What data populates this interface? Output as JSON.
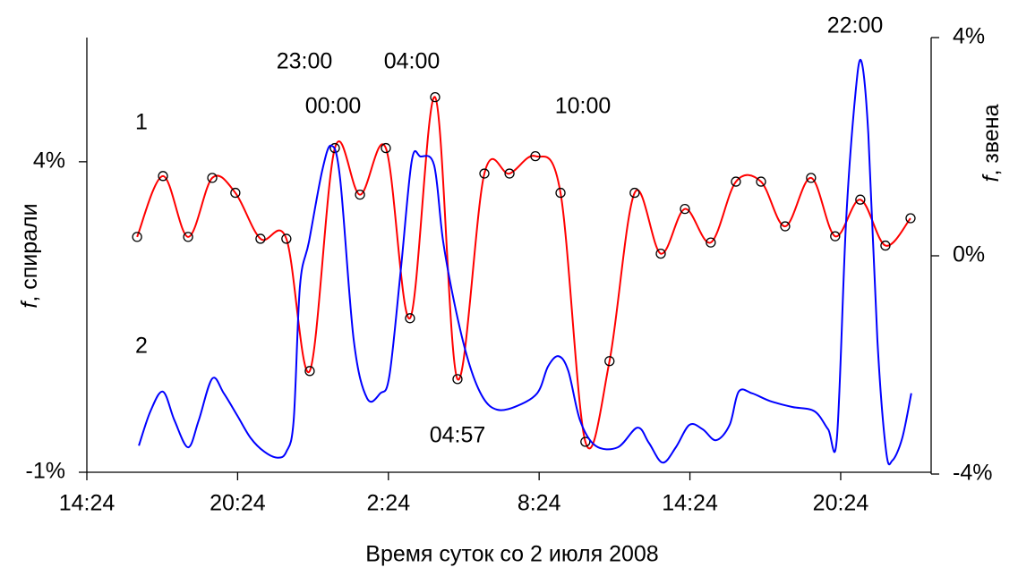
{
  "chart_data": {
    "type": "line",
    "x_label": "Время суток со 2 июля 2008",
    "y_label": {
      "symbol": "f",
      "text": ", спирали"
    },
    "y2_label": {
      "symbol": "f",
      "text": ", звена"
    },
    "xlim": [
      14.4,
      48
    ],
    "xticks": [
      {
        "value": 14.4,
        "label": "14:24"
      },
      {
        "value": 20.4,
        "label": "20:24"
      },
      {
        "value": 26.4,
        "label": "2:24"
      },
      {
        "value": 32.4,
        "label": "8:24"
      },
      {
        "value": 38.4,
        "label": "14:24"
      },
      {
        "value": 44.4,
        "label": "20:24"
      }
    ],
    "ylim": [
      -1,
      6
    ],
    "yticks": [
      {
        "value": -1,
        "label": "-1%"
      },
      {
        "value": 4,
        "label": "4%"
      }
    ],
    "y2lim": [
      -4,
      4
    ],
    "y2ticks": [
      {
        "value": -4,
        "label": "-4%"
      },
      {
        "value": 0,
        "label": "0%"
      },
      {
        "value": 4,
        "label": "4%"
      }
    ],
    "annotations": [
      "23:00",
      "04:00",
      "00:00",
      "10:00",
      "22:00",
      "04:57",
      "1",
      "2"
    ],
    "series": [
      {
        "name": "1",
        "color": "#ff0000",
        "markers": true,
        "x": [
          16.4,
          17.43,
          18.43,
          19.39,
          20.31,
          21.31,
          22.34,
          23.27,
          24.27,
          25.27,
          26.3,
          27.26,
          28.26,
          29.15,
          30.22,
          31.22,
          32.25,
          33.25,
          34.24,
          35.2,
          36.2,
          37.24,
          38.2,
          39.23,
          40.23,
          41.23,
          42.19,
          43.22,
          44.18,
          45.18,
          46.18,
          47.18
        ],
        "values": [
          2.79,
          3.77,
          2.79,
          3.74,
          3.5,
          2.76,
          2.76,
          0.63,
          4.22,
          3.47,
          4.22,
          1.48,
          5.04,
          0.5,
          3.81,
          3.81,
          4.09,
          3.5,
          -0.51,
          0.79,
          3.5,
          2.52,
          3.24,
          2.7,
          3.68,
          3.68,
          2.96,
          3.74,
          2.8,
          3.39,
          2.65,
          3.09
        ]
      },
      {
        "name": "2",
        "color": "#0000ff",
        "axis": "y2",
        "markers": false,
        "x": [
          16.47,
          16.93,
          17.43,
          17.89,
          18.43,
          18.85,
          19.39,
          19.85,
          20.39,
          20.92,
          21.46,
          21.99,
          22.34,
          22.63,
          22.88,
          23.24,
          23.77,
          24.13,
          24.48,
          25.02,
          25.55,
          26.08,
          26.44,
          26.9,
          27.33,
          27.68,
          28.22,
          28.58,
          29.11,
          29.65,
          30.18,
          30.72,
          31.43,
          32.32,
          32.75,
          33.17,
          33.56,
          34.03,
          34.64,
          35.53,
          36.31,
          36.77,
          37.31,
          37.84,
          38.38,
          38.91,
          39.44,
          39.98,
          40.34,
          40.87,
          41.58,
          42.47,
          43.36,
          43.9,
          44.25,
          44.61,
          44.97,
          45.22,
          45.5,
          45.86,
          46.21,
          46.46,
          46.85,
          47.21
        ],
        "values": [
          -3.48,
          -2.85,
          -2.49,
          -3.02,
          -3.51,
          -3.02,
          -2.25,
          -2.52,
          -2.93,
          -3.34,
          -3.59,
          -3.7,
          -3.59,
          -3.02,
          -0.56,
          0.26,
          1.57,
          2.02,
          1.41,
          -1.54,
          -2.61,
          -2.52,
          -2.2,
          -0.23,
          1.74,
          1.82,
          1.66,
          0.26,
          -1.05,
          -2.03,
          -2.61,
          -2.82,
          -2.77,
          -2.52,
          -2.03,
          -1.84,
          -2.11,
          -3.02,
          -3.48,
          -3.51,
          -3.15,
          -3.43,
          -3.79,
          -3.51,
          -3.1,
          -3.18,
          -3.38,
          -3.1,
          -2.49,
          -2.52,
          -2.66,
          -2.77,
          -2.85,
          -3.18,
          -3.34,
          0.59,
          2.89,
          3.57,
          2.23,
          -1.54,
          -3.59,
          -3.75,
          -3.34,
          -2.52
        ]
      }
    ]
  }
}
